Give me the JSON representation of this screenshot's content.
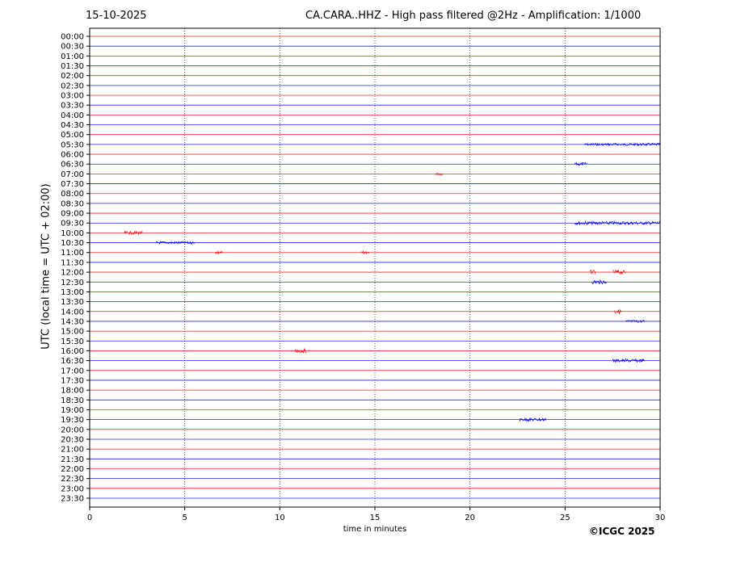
{
  "header": {
    "date": "15-10-2025",
    "title": "CA.CARA..HHZ - High pass filtered @2Hz - Amplification: 1/1000"
  },
  "copyright": "©ICGC 2025",
  "chart_data": {
    "type": "line",
    "xlabel": "time in minutes",
    "ylabel": "UTC (local time = UTC + 02:00)",
    "xlim": [
      0,
      30
    ],
    "xticks": [
      "0",
      "5",
      "10",
      "15",
      "20",
      "25",
      "30"
    ],
    "grid": "vertical dotted at each x tick",
    "trace_colors": [
      "#ff0000",
      "#0000ff"
    ],
    "traces": [
      "00:00",
      "00:30",
      "01:00",
      "01:30",
      "02:00",
      "02:30",
      "03:00",
      "03:30",
      "04:00",
      "04:30",
      "05:00",
      "05:30",
      "06:00",
      "06:30",
      "07:00",
      "07:30",
      "08:00",
      "08:30",
      "09:00",
      "09:30",
      "10:00",
      "10:30",
      "11:00",
      "11:30",
      "12:00",
      "12:30",
      "13:00",
      "13:30",
      "14:00",
      "14:30",
      "15:00",
      "15:30",
      "16:00",
      "16:30",
      "17:00",
      "17:30",
      "18:00",
      "18:30",
      "19:00",
      "19:30",
      "20:00",
      "20:30",
      "21:00",
      "21:30",
      "22:00",
      "22:30",
      "23:00",
      "23:30"
    ],
    "events": [
      {
        "trace": "05:30",
        "from": 26,
        "to": 30,
        "amp": 1.5
      },
      {
        "trace": "06:30",
        "from": 25.5,
        "to": 26.2,
        "amp": 2
      },
      {
        "trace": "07:00",
        "from": 18.2,
        "to": 18.6,
        "amp": 1.5
      },
      {
        "trace": "09:30",
        "from": 25.5,
        "to": 30,
        "amp": 2
      },
      {
        "trace": "10:00",
        "from": 1.8,
        "to": 2.8,
        "amp": 2
      },
      {
        "trace": "10:30",
        "from": 3.5,
        "to": 5.5,
        "amp": 1.5
      },
      {
        "trace": "11:00",
        "from": 6.6,
        "to": 7.0,
        "amp": 2
      },
      {
        "trace": "11:00",
        "from": 14.3,
        "to": 14.7,
        "amp": 1.5
      },
      {
        "trace": "12:00",
        "from": 26.3,
        "to": 26.6,
        "amp": 2.5
      },
      {
        "trace": "12:00",
        "from": 27.5,
        "to": 28.2,
        "amp": 2.5
      },
      {
        "trace": "12:30",
        "from": 26.4,
        "to": 27.2,
        "amp": 2.5
      },
      {
        "trace": "14:00",
        "from": 27.6,
        "to": 28.0,
        "amp": 2.5
      },
      {
        "trace": "14:30",
        "from": 28.2,
        "to": 29.2,
        "amp": 1.5
      },
      {
        "trace": "16:00",
        "from": 10.8,
        "to": 11.4,
        "amp": 2.5
      },
      {
        "trace": "16:30",
        "from": 27.5,
        "to": 29.2,
        "amp": 2
      },
      {
        "trace": "19:30",
        "from": 22.6,
        "to": 24.0,
        "amp": 2
      }
    ]
  }
}
